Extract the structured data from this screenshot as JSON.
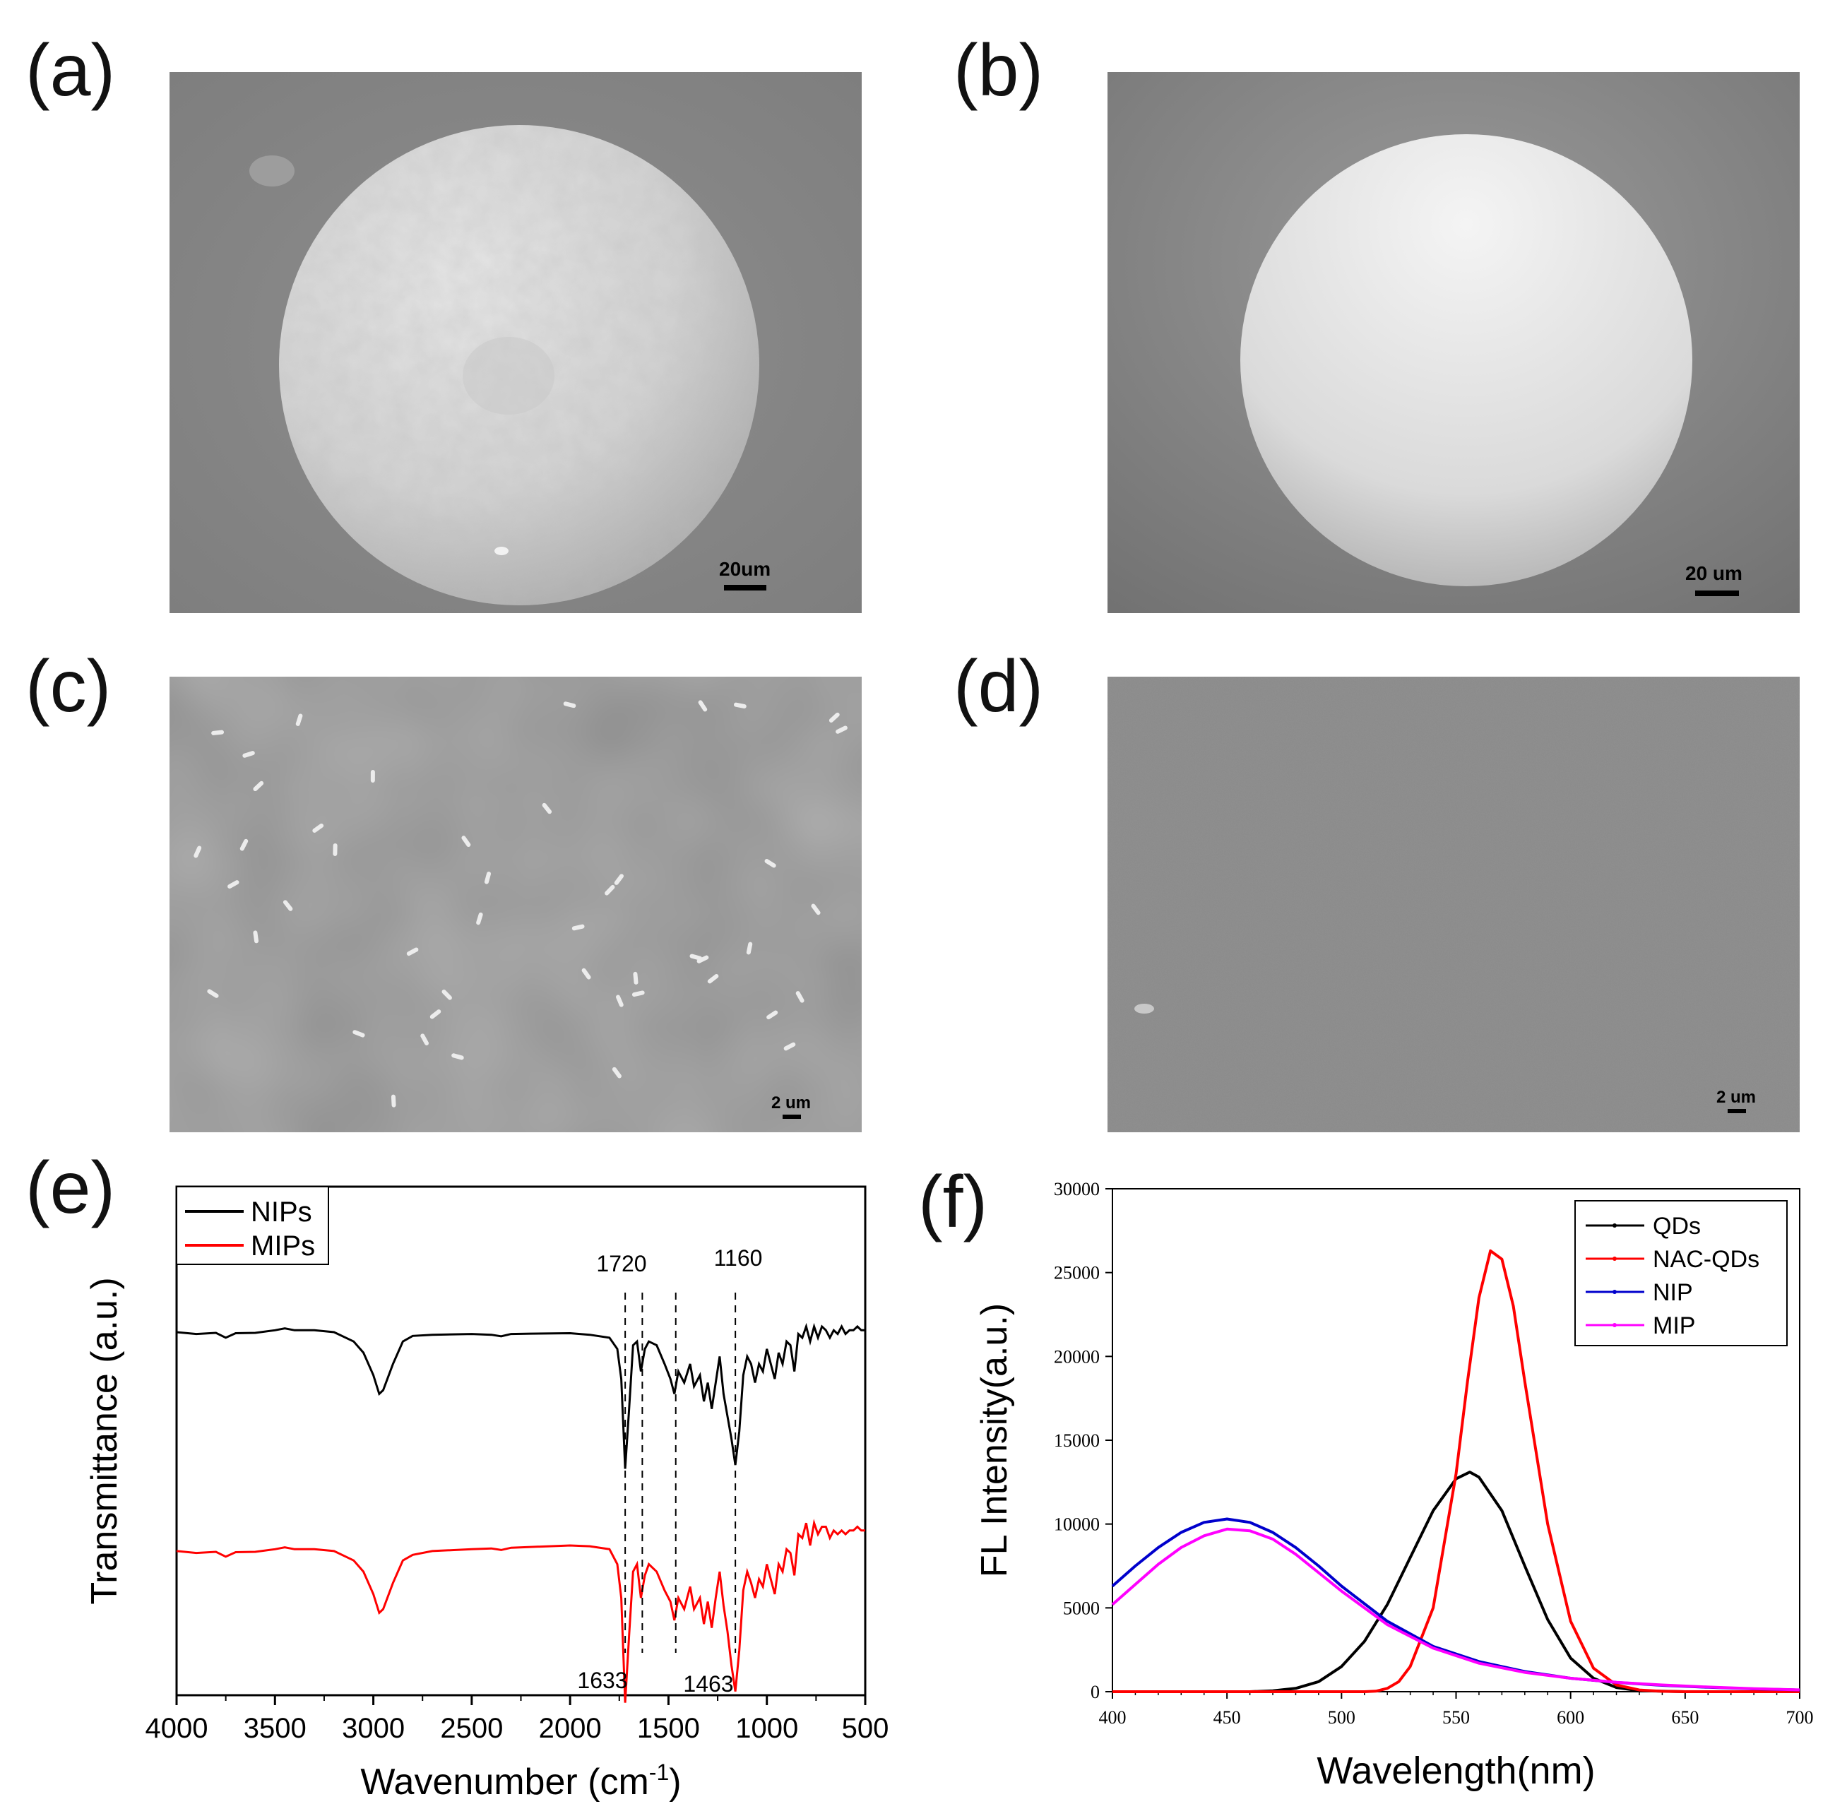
{
  "panels": {
    "a": {
      "label": "(a)",
      "scale_bar": "20um"
    },
    "b": {
      "label": "(b)",
      "scale_bar": "20 um"
    },
    "c": {
      "label": "(c)",
      "scale_bar": "2 um"
    },
    "d": {
      "label": "(d)",
      "scale_bar": "2 um"
    },
    "e": {
      "label": "(e)"
    },
    "f": {
      "label": "(f)"
    }
  },
  "chart_data": [
    {
      "panel": "e",
      "type": "line",
      "xlabel_main": "Wavenumber (cm",
      "xlabel_sup": "-1",
      "xlabel_end": ")",
      "ylabel": "Transmittance (a.u.)",
      "xlim": [
        4000,
        500
      ],
      "x_reversed": true,
      "xticks": [
        "4000",
        "3500",
        "3000",
        "2500",
        "2000",
        "1500",
        "1000",
        "500"
      ],
      "xtick_values": [
        4000,
        3500,
        3000,
        2500,
        2000,
        1500,
        1000,
        500
      ],
      "y_ticks_shown": false,
      "legend": {
        "placement": "top-left",
        "entries": [
          "NIPs",
          "MIPs"
        ]
      },
      "annotations": [
        {
          "text": "1720",
          "x": 1720,
          "arrow": "up"
        },
        {
          "text": "1160",
          "x": 1160,
          "arrow": "up"
        },
        {
          "text": "1633",
          "x": 1633,
          "arrow": "down"
        },
        {
          "text": "1463",
          "x": 1463,
          "arrow": "down"
        }
      ],
      "dashed_lines_x": [
        1720,
        1633,
        1463,
        1160
      ],
      "series": [
        {
          "name": "NIPs",
          "color": "#000000",
          "x": [
            4000,
            3900,
            3800,
            3750,
            3700,
            3600,
            3500,
            3450,
            3400,
            3300,
            3200,
            3100,
            3050,
            3000,
            2970,
            2950,
            2900,
            2850,
            2800,
            2700,
            2500,
            2400,
            2350,
            2300,
            2200,
            2000,
            1900,
            1800,
            1760,
            1740,
            1720,
            1700,
            1680,
            1660,
            1640,
            1620,
            1600,
            1560,
            1520,
            1490,
            1470,
            1450,
            1420,
            1390,
            1370,
            1340,
            1320,
            1300,
            1280,
            1260,
            1240,
            1220,
            1200,
            1180,
            1160,
            1140,
            1120,
            1100,
            1080,
            1060,
            1040,
            1020,
            1000,
            980,
            960,
            940,
            920,
            900,
            880,
            860,
            840,
            820,
            800,
            780,
            760,
            740,
            720,
            700,
            680,
            660,
            640,
            620,
            600,
            580,
            560,
            540,
            520,
            500
          ],
          "y": [
            0.985,
            0.98,
            0.983,
            0.97,
            0.982,
            0.983,
            0.99,
            0.995,
            0.99,
            0.99,
            0.985,
            0.96,
            0.93,
            0.87,
            0.82,
            0.83,
            0.9,
            0.96,
            0.975,
            0.978,
            0.98,
            0.978,
            0.974,
            0.98,
            0.981,
            0.982,
            0.978,
            0.97,
            0.94,
            0.86,
            0.62,
            0.78,
            0.95,
            0.96,
            0.88,
            0.94,
            0.96,
            0.95,
            0.9,
            0.86,
            0.82,
            0.88,
            0.85,
            0.9,
            0.84,
            0.87,
            0.8,
            0.85,
            0.78,
            0.85,
            0.92,
            0.82,
            0.76,
            0.7,
            0.63,
            0.72,
            0.87,
            0.92,
            0.9,
            0.85,
            0.9,
            0.88,
            0.94,
            0.9,
            0.86,
            0.93,
            0.9,
            0.96,
            0.95,
            0.88,
            0.98,
            0.97,
            1.0,
            0.96,
            1.0,
            0.97,
            1.0,
            0.99,
            0.97,
            0.99,
            0.98,
            1.0,
            0.98,
            0.99,
            0.99,
            1.0,
            0.99,
            0.99
          ]
        },
        {
          "name": "MIPs",
          "color": "#ff0000",
          "x": [
            4000,
            3900,
            3800,
            3750,
            3700,
            3600,
            3500,
            3450,
            3400,
            3300,
            3200,
            3100,
            3050,
            3000,
            2970,
            2950,
            2900,
            2850,
            2800,
            2700,
            2500,
            2400,
            2350,
            2300,
            2200,
            2000,
            1900,
            1800,
            1760,
            1740,
            1720,
            1700,
            1680,
            1660,
            1640,
            1620,
            1600,
            1560,
            1520,
            1490,
            1470,
            1450,
            1420,
            1390,
            1370,
            1340,
            1320,
            1300,
            1280,
            1260,
            1240,
            1220,
            1200,
            1180,
            1160,
            1140,
            1120,
            1100,
            1080,
            1060,
            1040,
            1020,
            1000,
            980,
            960,
            940,
            920,
            900,
            880,
            860,
            840,
            820,
            800,
            780,
            760,
            740,
            720,
            700,
            680,
            660,
            640,
            620,
            600,
            580,
            560,
            540,
            520,
            500
          ],
          "y": [
            0.985,
            0.98,
            0.983,
            0.97,
            0.982,
            0.983,
            0.99,
            0.995,
            0.99,
            0.99,
            0.985,
            0.96,
            0.93,
            0.87,
            0.82,
            0.83,
            0.9,
            0.96,
            0.975,
            0.985,
            0.99,
            0.992,
            0.988,
            0.994,
            0.996,
            1.0,
            0.998,
            0.99,
            0.95,
            0.86,
            0.58,
            0.76,
            0.93,
            0.95,
            0.86,
            0.92,
            0.95,
            0.93,
            0.88,
            0.85,
            0.8,
            0.86,
            0.83,
            0.89,
            0.83,
            0.86,
            0.79,
            0.85,
            0.78,
            0.86,
            0.93,
            0.84,
            0.77,
            0.68,
            0.61,
            0.72,
            0.88,
            0.93,
            0.9,
            0.86,
            0.91,
            0.89,
            0.95,
            0.91,
            0.87,
            0.95,
            0.93,
            0.99,
            0.98,
            0.92,
            1.03,
            1.02,
            1.06,
            1.0,
            1.06,
            1.03,
            1.05,
            1.05,
            1.02,
            1.04,
            1.03,
            1.04,
            1.03,
            1.04,
            1.04,
            1.05,
            1.04,
            1.04
          ]
        }
      ]
    },
    {
      "panel": "f",
      "type": "line",
      "xlabel": "Wavelength(nm)",
      "ylabel": "FL Intensity(a.u.)",
      "xlim": [
        400,
        700
      ],
      "ylim": [
        0,
        30000
      ],
      "xticks": [
        "400",
        "450",
        "500",
        "550",
        "600",
        "650",
        "700"
      ],
      "xtick_values": [
        400,
        450,
        500,
        550,
        600,
        650,
        700
      ],
      "yticks": [
        "0",
        "5000",
        "10000",
        "15000",
        "20000",
        "25000",
        "30000"
      ],
      "ytick_values": [
        0,
        5000,
        10000,
        15000,
        20000,
        25000,
        30000
      ],
      "legend": {
        "placement": "top-right",
        "entries": [
          "QDs",
          "NAC-QDs",
          "NIP",
          "MIP"
        ]
      },
      "series": [
        {
          "name": "QDs",
          "color": "#000000",
          "x": [
            400,
            460,
            470,
            480,
            490,
            500,
            510,
            520,
            530,
            540,
            550,
            556,
            560,
            570,
            580,
            590,
            600,
            610,
            620,
            630,
            650,
            700
          ],
          "y": [
            0,
            0,
            50,
            200,
            600,
            1500,
            3000,
            5200,
            8000,
            10800,
            12700,
            13100,
            12800,
            10800,
            7500,
            4300,
            2000,
            800,
            250,
            60,
            0,
            0
          ]
        },
        {
          "name": "NAC-QDs",
          "color": "#ff0000",
          "x": [
            400,
            510,
            515,
            520,
            525,
            530,
            540,
            550,
            555,
            560,
            565,
            570,
            575,
            580,
            590,
            600,
            610,
            620,
            630,
            640,
            650,
            700
          ],
          "y": [
            0,
            0,
            30,
            200,
            600,
            1500,
            5000,
            13000,
            18500,
            23500,
            26300,
            25800,
            23000,
            18500,
            10000,
            4200,
            1400,
            400,
            100,
            20,
            0,
            0
          ]
        },
        {
          "name": "NIP",
          "color": "#0000cc",
          "x": [
            400,
            410,
            420,
            430,
            440,
            450,
            460,
            470,
            480,
            490,
            500,
            520,
            540,
            560,
            580,
            600,
            620,
            640,
            660,
            680,
            700
          ],
          "y": [
            6300,
            7500,
            8600,
            9500,
            10100,
            10300,
            10100,
            9500,
            8600,
            7500,
            6300,
            4200,
            2700,
            1800,
            1200,
            800,
            550,
            380,
            260,
            170,
            100
          ]
        },
        {
          "name": "MIP",
          "color": "#ff00ff",
          "x": [
            400,
            410,
            420,
            430,
            440,
            450,
            460,
            470,
            480,
            490,
            500,
            520,
            540,
            560,
            580,
            600,
            620,
            640,
            660,
            680,
            700
          ],
          "y": [
            5200,
            6400,
            7600,
            8600,
            9300,
            9700,
            9600,
            9100,
            8200,
            7100,
            6000,
            4000,
            2600,
            1700,
            1150,
            800,
            560,
            400,
            280,
            180,
            110
          ]
        }
      ]
    }
  ]
}
